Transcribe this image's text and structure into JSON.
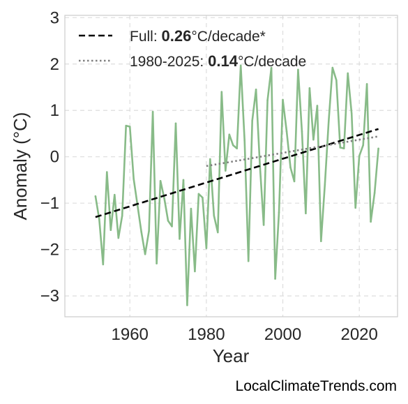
{
  "watermark": "LocalClimateTrends.com",
  "chart_data": {
    "type": "line",
    "xlabel": "Year",
    "ylabel": "Anomaly (°C)",
    "xlim": [
      1943,
      2030
    ],
    "ylim": [
      -3.45,
      3.05
    ],
    "xticks": [
      1960,
      1980,
      2000,
      2020
    ],
    "yticks": [
      -3,
      -2,
      -1,
      0,
      1,
      2,
      3
    ],
    "ytick_labels": [
      "−3",
      "−2",
      "−1",
      "0",
      "1",
      "2",
      "3"
    ],
    "grid": true,
    "legend_position": "top-left",
    "x": [
      1951,
      1952,
      1953,
      1954,
      1955,
      1956,
      1957,
      1958,
      1959,
      1960,
      1961,
      1962,
      1963,
      1964,
      1965,
      1966,
      1967,
      1968,
      1969,
      1970,
      1971,
      1972,
      1973,
      1974,
      1975,
      1976,
      1977,
      1978,
      1979,
      1980,
      1981,
      1982,
      1983,
      1984,
      1985,
      1986,
      1987,
      1988,
      1989,
      1990,
      1991,
      1992,
      1993,
      1994,
      1995,
      1996,
      1997,
      1998,
      1999,
      2000,
      2001,
      2002,
      2003,
      2004,
      2005,
      2006,
      2007,
      2008,
      2009,
      2010,
      2011,
      2012,
      2013,
      2014,
      2015,
      2016,
      2017,
      2018,
      2019,
      2020,
      2021,
      2022,
      2023,
      2024,
      2025
    ],
    "series": [
      {
        "values": [
          -0.85,
          -1.35,
          -2.32,
          -0.33,
          -1.58,
          -0.82,
          -1.75,
          -1.27,
          0.67,
          0.65,
          -0.48,
          -1.05,
          -1.62,
          -2.1,
          -1.6,
          0.97,
          -2.3,
          -0.52,
          -0.9,
          -1.38,
          -1.5,
          0.72,
          -1.77,
          -0.5,
          -3.2,
          -1.12,
          -2.47,
          -0.8,
          -0.88,
          -1.97,
          -0.05,
          -1.27,
          -1.63,
          1.4,
          -0.3,
          0.48,
          0.25,
          0.18,
          1.97,
          0.35,
          -2.25,
          0.78,
          1.45,
          -0.17,
          -1.47,
          1.22,
          1.92,
          -2.63,
          -1.2,
          1.23,
          0.55,
          -0.23,
          -0.53,
          1.88,
          0.55,
          -1.22,
          1.48,
          0.37,
          1.1,
          -1.82,
          -0.6,
          0.77,
          1.92,
          1.65,
          0.2,
          0.18,
          1.8,
          0.93,
          -1.1,
          0.02,
          0.25,
          1.57,
          -1.4,
          -0.78,
          0.18
        ],
        "color": "#88bb88"
      }
    ],
    "trends": [
      {
        "label_prefix": "Full: ",
        "label_value": "0.26",
        "label_suffix": "°C/decade*",
        "x": [
          1951,
          2025
        ],
        "y": [
          -1.3,
          0.6
        ],
        "style": "dashed",
        "color": "#000000"
      },
      {
        "label_prefix": "1980-2025: ",
        "label_value": "0.14",
        "label_suffix": "°C/decade",
        "x": [
          1980,
          2025
        ],
        "y": [
          -0.2,
          0.44
        ],
        "style": "dotted",
        "color": "#7f7f7f"
      }
    ]
  }
}
